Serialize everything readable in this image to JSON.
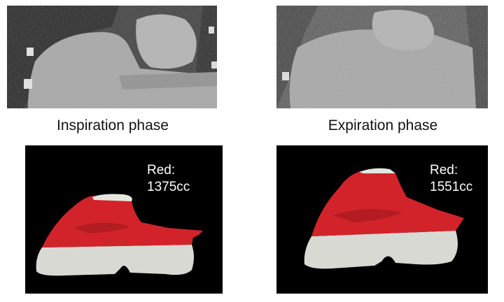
{
  "panels": [
    {
      "caption": "Inspiration phase",
      "volume_label": "Red:",
      "volume_value": "1375cc"
    },
    {
      "caption": "Expiration phase",
      "volume_label": "Red:",
      "volume_value": "1551cc"
    }
  ],
  "colors": {
    "segmentation": "#d3232a",
    "tissue": "#d9d9d4",
    "background": "#000000"
  }
}
